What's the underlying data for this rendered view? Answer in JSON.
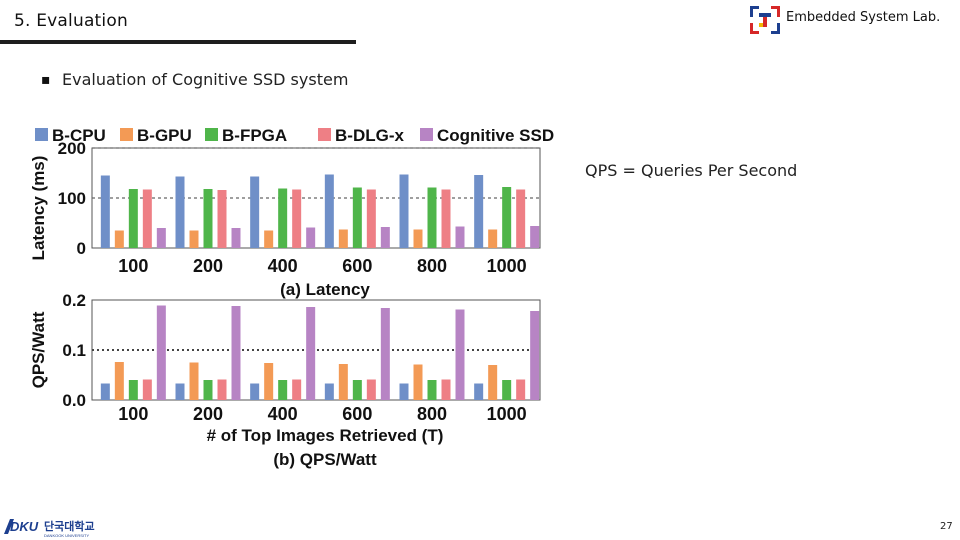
{
  "header": {
    "section_title": "5. Evaluation",
    "lab_name": "Embedded System Lab.",
    "lab_logo_icon": "embedded-lab-logo-icon"
  },
  "content": {
    "bullet": "▪",
    "bullet_text": "Evaluation of Cognitive SSD system",
    "note": "QPS = Queries Per Second"
  },
  "footer": {
    "university_logo_text": "단국대학교",
    "university_logo_sub": "DANKOOK UNIVERSITY",
    "university_logo_mark": "DKU",
    "page_number": "27"
  },
  "colors": {
    "B-CPU": "#6f8fc8",
    "B-GPU": "#f39a55",
    "B-FPGA": "#4fb54a",
    "B-DLG-x": "#ee7f85",
    "Cognitive SSD": "#b784c4"
  },
  "chart_data": [
    {
      "type": "bar",
      "title": "(a) Latency",
      "xlabel": "",
      "ylabel": "Latency (ms)",
      "ylim": [
        0,
        200
      ],
      "yticks": [
        "0",
        "100",
        "200"
      ],
      "grid": "dashed horizontal lines at y=100 and y=200",
      "legend": "top",
      "categories": [
        "100",
        "200",
        "400",
        "600",
        "800",
        "1000"
      ],
      "series": [
        {
          "name": "B-CPU",
          "values": [
            145,
            143,
            143,
            147,
            147,
            146
          ]
        },
        {
          "name": "B-GPU",
          "values": [
            35,
            35,
            35,
            37,
            37,
            37
          ]
        },
        {
          "name": "B-FPGA",
          "values": [
            118,
            118,
            119,
            121,
            121,
            122
          ]
        },
        {
          "name": "B-DLG-x",
          "values": [
            117,
            116,
            117,
            117,
            117,
            117
          ]
        },
        {
          "name": "Cognitive SSD",
          "values": [
            40,
            40,
            41,
            42,
            43,
            44
          ]
        }
      ]
    },
    {
      "type": "bar",
      "title": "(b) QPS/Watt",
      "xlabel": "# of Top Images Retrieved (T)",
      "ylabel": "QPS/Watt",
      "ylim": [
        0,
        0.2
      ],
      "yticks": [
        "0.0",
        "0.1",
        "0.2"
      ],
      "grid": "dotted horizontal line at y=0.1",
      "legend": "top",
      "categories": [
        "100",
        "200",
        "400",
        "600",
        "800",
        "1000"
      ],
      "series": [
        {
          "name": "B-CPU",
          "values": [
            0.033,
            0.033,
            0.033,
            0.033,
            0.033,
            0.033
          ]
        },
        {
          "name": "B-GPU",
          "values": [
            0.076,
            0.075,
            0.074,
            0.072,
            0.071,
            0.07
          ]
        },
        {
          "name": "B-FPGA",
          "values": [
            0.04,
            0.04,
            0.04,
            0.04,
            0.04,
            0.04
          ]
        },
        {
          "name": "B-DLG-x",
          "values": [
            0.041,
            0.041,
            0.041,
            0.041,
            0.041,
            0.041
          ]
        },
        {
          "name": "Cognitive SSD",
          "values": [
            0.189,
            0.188,
            0.186,
            0.184,
            0.181,
            0.178
          ]
        }
      ]
    }
  ]
}
